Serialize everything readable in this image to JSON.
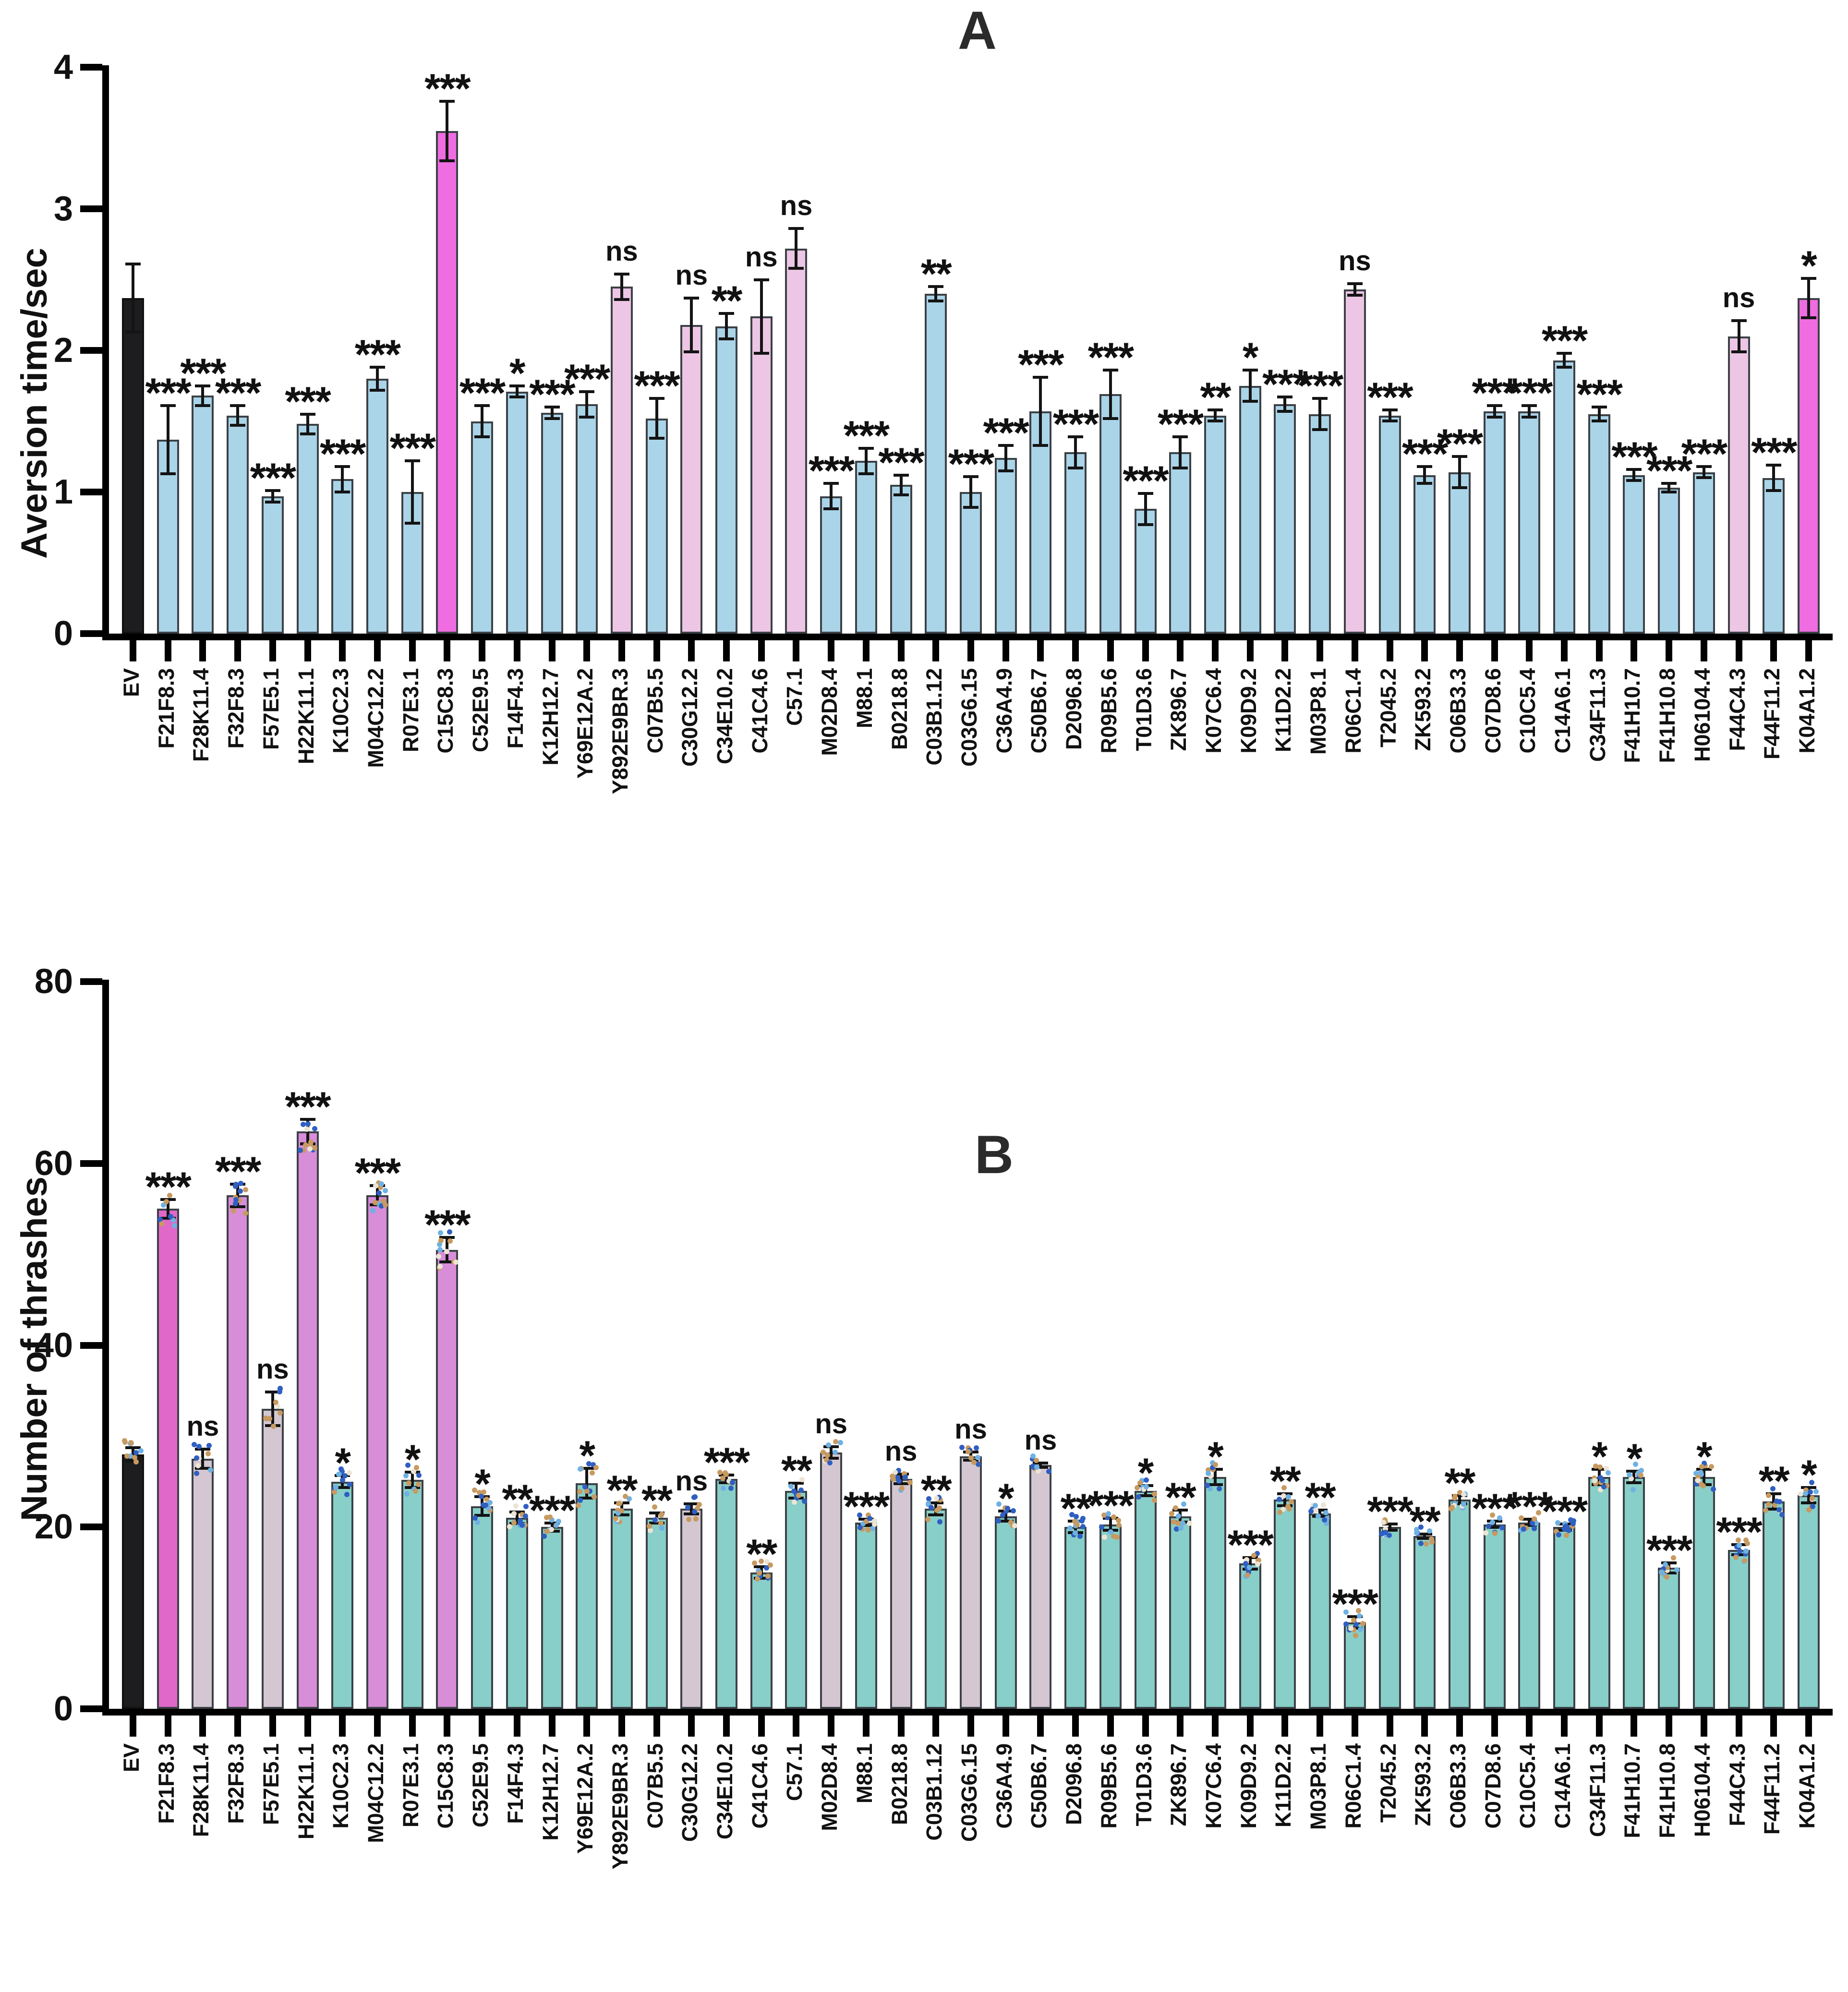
{
  "palette": {
    "black": "#1d1d20",
    "blue": "#aad4e8",
    "magenta": "#ef6ce1",
    "pink": "#ecc6e4",
    "teal": "#87cfc8",
    "orchid": "#d88dd8",
    "mauve": "#d4c7d2",
    "bmagenta": "#e068c9",
    "error_bar": "#141414",
    "dot_colors": [
      "#2f5fc1",
      "#6fb1e3",
      "#c79a61",
      "#ece4d4"
    ]
  },
  "chart_data": [
    {
      "panel_label": "A",
      "type": "bar",
      "ylabel": "Aversion time/sec",
      "ylim": [
        0,
        4
      ],
      "yticks": [
        0,
        1,
        2,
        3,
        4
      ],
      "grid": false,
      "legend": "none",
      "categories": [
        "EV",
        "F21F8.3",
        "F28K11.4",
        "F32F8.3",
        "F57E5.1",
        "H22K11.1",
        "K10C2.3",
        "M04C12.2",
        "R07E3.1",
        "C15C8.3",
        "C52E9.5",
        "F14F4.3",
        "K12H12.7",
        "Y69E12A.2",
        "Y892E9BR.3",
        "C07B5.5",
        "C30G12.2",
        "C34E10.2",
        "C41C4.6",
        "C57.1",
        "M02D8.4",
        "M88.1",
        "B0218.8",
        "C03B1.12",
        "C03G6.15",
        "C36A4.9",
        "C50B6.7",
        "D2096.8",
        "R09B5.6",
        "T01D3.6",
        "ZK896.7",
        "K07C6.4",
        "K09D9.2",
        "K11D2.2",
        "M03P8.1",
        "R06C1.4",
        "T2045.2",
        "ZK593.2",
        "C06B3.3",
        "C07D8.6",
        "C10C5.4",
        "C14A6.1",
        "C34F11.3",
        "F41H10.7",
        "F41H10.8",
        "H06104.4",
        "F44C4.3",
        "F44F11.2",
        "K04A1.2"
      ],
      "values": [
        2.37,
        1.37,
        1.68,
        1.54,
        0.97,
        1.48,
        1.09,
        1.8,
        1.0,
        3.55,
        1.5,
        1.71,
        1.56,
        1.62,
        2.45,
        1.52,
        2.18,
        2.17,
        2.24,
        2.72,
        0.97,
        1.22,
        1.05,
        2.4,
        1.0,
        1.24,
        1.57,
        1.28,
        1.69,
        0.88,
        1.28,
        1.54,
        1.75,
        1.62,
        1.55,
        2.43,
        1.54,
        1.12,
        1.14,
        1.57,
        1.57,
        1.93,
        1.55,
        1.12,
        1.03,
        1.14,
        2.1,
        1.1,
        2.37
      ],
      "errors": [
        0.25,
        0.25,
        0.08,
        0.08,
        0.05,
        0.08,
        0.1,
        0.09,
        0.23,
        0.22,
        0.12,
        0.05,
        0.05,
        0.1,
        0.1,
        0.15,
        0.2,
        0.1,
        0.27,
        0.15,
        0.1,
        0.1,
        0.08,
        0.06,
        0.12,
        0.1,
        0.25,
        0.12,
        0.18,
        0.12,
        0.12,
        0.05,
        0.12,
        0.06,
        0.12,
        0.05,
        0.05,
        0.07,
        0.12,
        0.05,
        0.05,
        0.06,
        0.06,
        0.05,
        0.04,
        0.05,
        0.12,
        0.1,
        0.15
      ],
      "sig": [
        "",
        "***",
        "***",
        "***",
        "***",
        "***",
        "***",
        "***",
        "***",
        "***",
        "***",
        "*",
        "***",
        "***",
        "ns",
        "***",
        "ns",
        "**",
        "ns",
        "ns",
        "***",
        "***",
        "***",
        "**",
        "***",
        "***",
        "***",
        "***",
        "***",
        "***",
        "***",
        "**",
        "*",
        "***",
        "***",
        "ns",
        "***",
        "***",
        "***",
        "***",
        "***",
        "***",
        "***",
        "***",
        "***",
        "***",
        "ns",
        "***",
        "*"
      ],
      "bar_colors": [
        "black",
        "blue",
        "blue",
        "blue",
        "blue",
        "blue",
        "blue",
        "blue",
        "blue",
        "magenta",
        "blue",
        "blue",
        "blue",
        "blue",
        "pink",
        "blue",
        "pink",
        "blue",
        "pink",
        "pink",
        "blue",
        "blue",
        "blue",
        "blue",
        "blue",
        "blue",
        "blue",
        "blue",
        "blue",
        "blue",
        "blue",
        "blue",
        "blue",
        "blue",
        "blue",
        "pink",
        "blue",
        "blue",
        "blue",
        "blue",
        "blue",
        "blue",
        "blue",
        "blue",
        "blue",
        "blue",
        "pink",
        "blue",
        "magenta"
      ],
      "dots": false
    },
    {
      "panel_label": "B",
      "type": "bar",
      "ylabel": "Number of thrashes",
      "ylim": [
        0,
        80
      ],
      "yticks": [
        0,
        20,
        40,
        60,
        80
      ],
      "grid": false,
      "legend": "none",
      "categories": [
        "EV",
        "F21F8.3",
        "F28K11.4",
        "F32F8.3",
        "F57E5.1",
        "H22K11.1",
        "K10C2.3",
        "M04C12.2",
        "R07E3.1",
        "C15C8.3",
        "C52E9.5",
        "F14F4.3",
        "K12H12.7",
        "Y69E12A.2",
        "Y892E9BR.3",
        "C07B5.5",
        "C30G12.2",
        "C34E10.2",
        "C41C4.6",
        "C57.1",
        "M02D8.4",
        "M88.1",
        "B0218.8",
        "C03B1.12",
        "C03G6.15",
        "C36A4.9",
        "C50B6.7",
        "D2096.8",
        "R09B5.6",
        "T01D3.6",
        "ZK896.7",
        "K07C6.4",
        "K09D9.2",
        "K11D2.2",
        "M03P8.1",
        "R06C1.4",
        "T2045.2",
        "ZK593.2",
        "C06B3.3",
        "C07D8.6",
        "C10C5.4",
        "C14A6.1",
        "C34F11.3",
        "F41H10.7",
        "F41H10.8",
        "H06104.4",
        "F44C4.3",
        "F44F11.2",
        "K04A1.2"
      ],
      "values": [
        28,
        55,
        27.5,
        56.5,
        33,
        63.5,
        25,
        56.5,
        25.2,
        50.5,
        22.3,
        21,
        20,
        24.8,
        22,
        21,
        22,
        25.3,
        15,
        24,
        28.2,
        20.5,
        25.3,
        22,
        27.8,
        21.2,
        26.8,
        20,
        20.3,
        24,
        21.2,
        25.5,
        16,
        23,
        21.5,
        9.5,
        20,
        19,
        23,
        20.3,
        20.5,
        20,
        25.5,
        25.5,
        15.5,
        25.5,
        17.5,
        22.8,
        23.5
      ],
      "errors": [
        0.9,
        1.2,
        1.2,
        1.4,
        2.0,
        1.5,
        0.8,
        1.2,
        1.0,
        1.5,
        1.2,
        0.8,
        0.6,
        1.8,
        0.8,
        0.7,
        0.7,
        0.6,
        0.8,
        1.0,
        0.8,
        0.5,
        0.7,
        0.8,
        0.6,
        0.7,
        0.4,
        0.8,
        0.8,
        0.7,
        0.8,
        1.0,
        0.8,
        0.8,
        0.5,
        0.8,
        0.5,
        0.4,
        0.6,
        0.5,
        0.5,
        0.5,
        1.0,
        0.8,
        0.7,
        1.0,
        0.7,
        1.0,
        1.0
      ],
      "sig": [
        "",
        "***",
        "ns",
        "***",
        "ns",
        "***",
        "*",
        "***",
        "*",
        "***",
        "*",
        "**",
        "***",
        "*",
        "**",
        "**",
        "ns",
        "***",
        "**",
        "**",
        "ns",
        "***",
        "ns",
        "**",
        "ns",
        "*",
        "ns",
        "**",
        "***",
        "*",
        "**",
        "*",
        "***",
        "**",
        "**",
        "***",
        "***",
        "**",
        "**",
        "***",
        "***",
        "***",
        "*",
        "*",
        "***",
        "*",
        "***",
        "**",
        "*"
      ],
      "bar_colors": [
        "black",
        "bmagenta",
        "mauve",
        "orchid",
        "mauve",
        "orchid",
        "teal",
        "orchid",
        "teal",
        "orchid",
        "teal",
        "teal",
        "teal",
        "teal",
        "teal",
        "teal",
        "mauve",
        "teal",
        "teal",
        "teal",
        "mauve",
        "teal",
        "mauve",
        "teal",
        "mauve",
        "teal",
        "mauve",
        "teal",
        "teal",
        "teal",
        "teal",
        "teal",
        "teal",
        "teal",
        "teal",
        "teal",
        "teal",
        "teal",
        "teal",
        "teal",
        "teal",
        "teal",
        "teal",
        "teal",
        "teal",
        "teal",
        "teal",
        "teal",
        "teal"
      ],
      "dots": true
    }
  ]
}
